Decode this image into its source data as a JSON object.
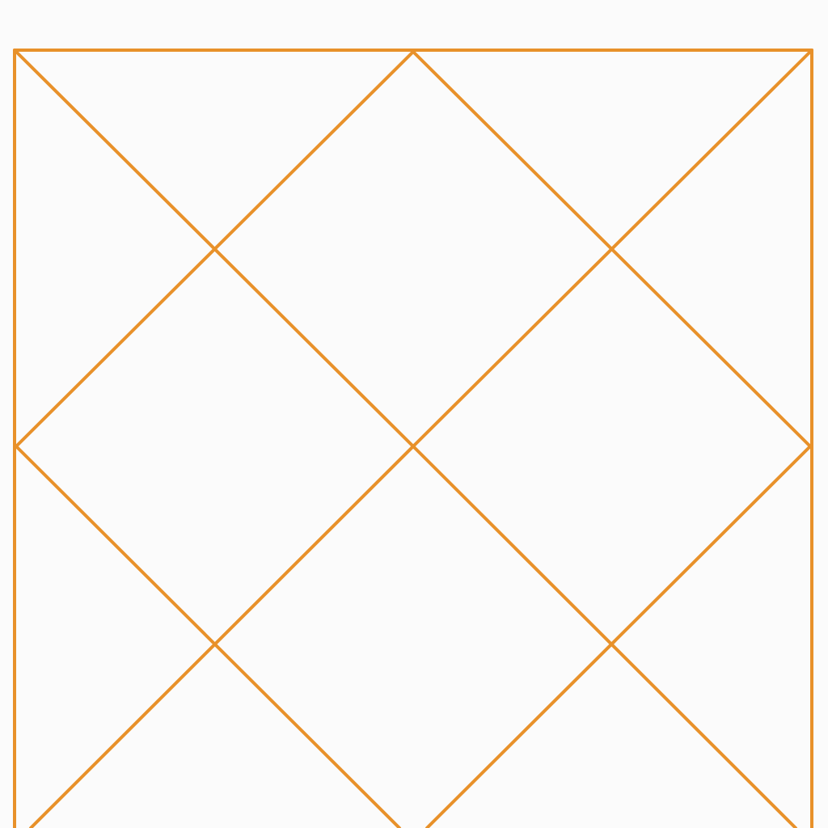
{
  "diagram": {
    "background_color": "#fbfbfb",
    "line_color": "#e8912a",
    "shape_type": "diamond-lattice-grid",
    "rows_of_diamonds": 2,
    "columns_of_diamonds": 2
  }
}
